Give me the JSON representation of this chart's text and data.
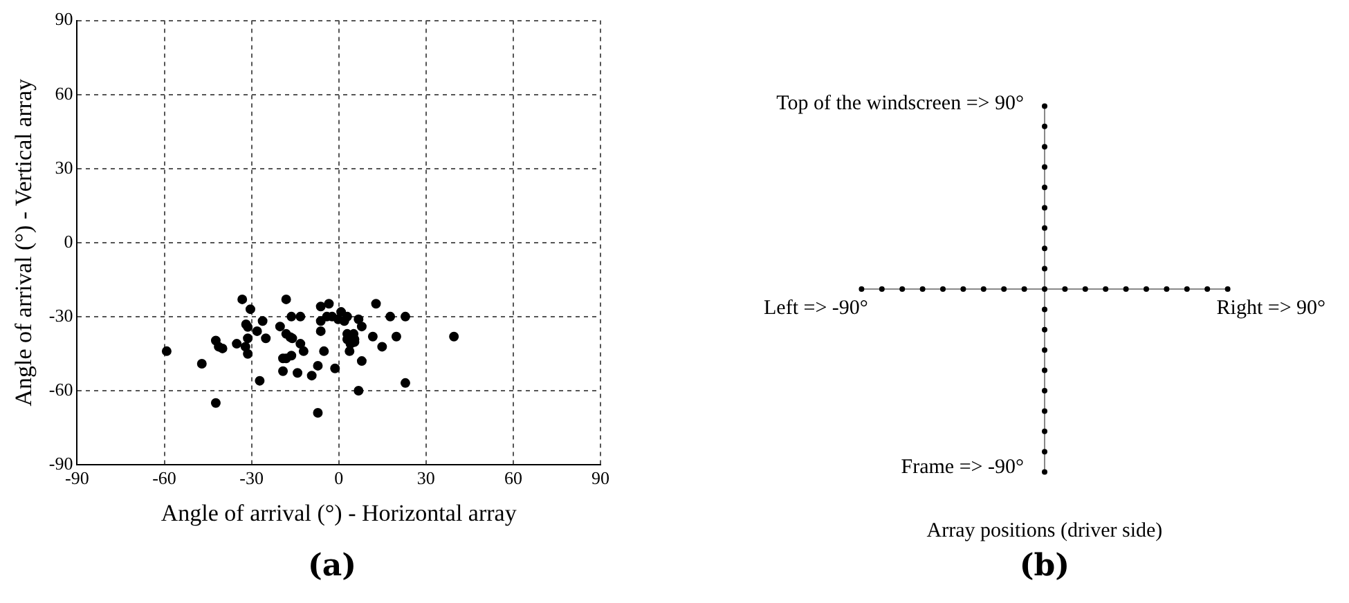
{
  "chart_data": [
    {
      "type": "scatter",
      "title": "(a)",
      "xlabel": "Angle of arrival (°) - Horizontal array",
      "ylabel": "Angle of arrival (°) - Vertical array",
      "marker": "circle",
      "color": "#000000",
      "grid": true,
      "xlim": [
        -90,
        90
      ],
      "xticks": [
        -90,
        -60,
        -30,
        0,
        30,
        60,
        90
      ],
      "ylim": [
        -90,
        90
      ],
      "yticks": [
        -90,
        -60,
        -30,
        0,
        30,
        60,
        90
      ],
      "x": [
        -33.2,
        -18.1,
        -30.4,
        -16.3,
        -13.2,
        -31.9,
        -31.3,
        -26.2,
        -20.2,
        -28.1,
        -18.1,
        -16.7,
        -16.0,
        -25.1,
        -31.3,
        -42.3,
        -35.1,
        -13.2,
        -41.3,
        -40.0,
        -32.1,
        -59.2,
        -12.1,
        -31.3,
        -16.3,
        -18.1,
        -19.2,
        -47.1,
        -19.2,
        -14.2,
        -9.3,
        -27.2,
        -42.3,
        -6.2,
        -3.4,
        -4.1,
        -2.3,
        0.8,
        -6.2,
        -0.2,
        1.9,
        2.9,
        6.8,
        7.9,
        12.8,
        17.7,
        22.9,
        -6.2,
        2.9,
        5.1,
        2.9,
        5.4,
        4.0,
        5.4,
        3.7,
        11.7,
        19.8,
        14.9,
        39.6,
        -5.1,
        7.9,
        -7.2,
        -1.3,
        6.8,
        22.9,
        -7.2
      ],
      "values": [
        -23.0,
        -23.0,
        -27.0,
        -30.0,
        -30.0,
        -33.1,
        -34.2,
        -31.8,
        -34.0,
        -35.9,
        -37.0,
        -38.3,
        -38.8,
        -38.8,
        -38.8,
        -39.7,
        -41.0,
        -41.0,
        -42.2,
        -42.9,
        -42.2,
        -44.0,
        -44.0,
        -45.1,
        -45.8,
        -46.9,
        -46.9,
        -49.1,
        -52.1,
        -52.8,
        -53.9,
        -56.0,
        -65.0,
        -25.9,
        -24.8,
        -30.0,
        -30.0,
        -28.1,
        -31.8,
        -31.1,
        -31.8,
        -30.0,
        -31.1,
        -34.0,
        -24.8,
        -30.0,
        -30.0,
        -35.9,
        -37.0,
        -37.0,
        -39.2,
        -39.2,
        -41.0,
        -40.3,
        -44.0,
        -38.1,
        -38.1,
        -42.2,
        -38.1,
        -44.0,
        -48.0,
        -49.9,
        -51.0,
        -60.0,
        -56.9,
        -69.0
      ]
    },
    {
      "type": "other",
      "title": "(b)",
      "annotations": [
        "Top of the windscreen => 90°",
        "Left => -90°",
        "Right => 90°",
        "Frame => -90°",
        "Array positions (driver side)"
      ]
    }
  ]
}
